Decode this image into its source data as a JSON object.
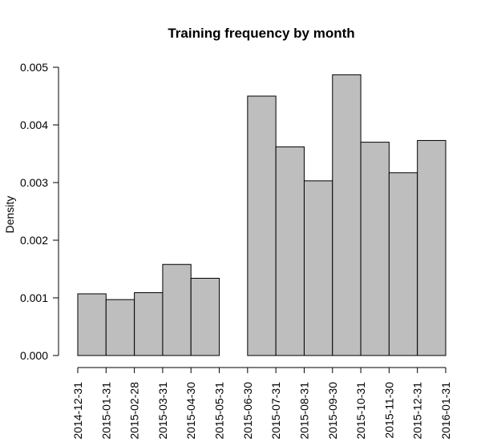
{
  "chart_data": {
    "type": "bar",
    "title": "Training frequency by month",
    "xlabel": "",
    "ylabel": "Density",
    "ylim": [
      0,
      0.005
    ],
    "y_ticks": [
      "0.000",
      "0.001",
      "0.002",
      "0.003",
      "0.004",
      "0.005"
    ],
    "y_tick_values": [
      0,
      0.001,
      0.002,
      0.003,
      0.004,
      0.005
    ],
    "x_ticks": [
      "2014-12-31",
      "2015-01-31",
      "2015-02-28",
      "2015-03-31",
      "2015-04-30",
      "2015-05-31",
      "2015-06-30",
      "2015-07-31",
      "2015-08-31",
      "2015-09-30",
      "2015-10-31",
      "2015-11-30",
      "2015-12-31",
      "2016-01-31"
    ],
    "values": [
      0.00107,
      0.00097,
      0.00109,
      0.00158,
      0.00134,
      0.0,
      0.0045,
      0.00362,
      0.00303,
      0.00487,
      0.0037,
      0.00317,
      0.00373
    ],
    "grid": false,
    "colors": {
      "bar_fill": "#bebebe",
      "bar_stroke": "#000000"
    }
  }
}
